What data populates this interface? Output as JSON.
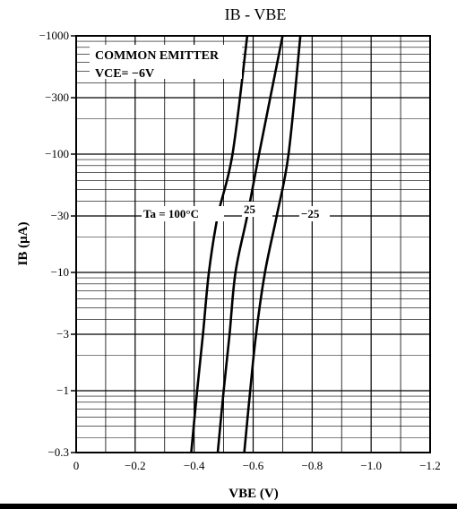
{
  "chart_data": {
    "type": "line",
    "title": "IB - VBE",
    "xlabel": "VBE (V)",
    "ylabel": "IB (μA)",
    "x_scale": "linear",
    "y_scale": "log",
    "xlim": [
      0,
      -1.2
    ],
    "ylim": [
      -0.3,
      -1000
    ],
    "x_ticks": [
      0,
      -0.2,
      -0.4,
      -0.6,
      -0.8,
      -1.0,
      -1.2
    ],
    "x_tick_labels": [
      "0",
      "−0.2",
      "−0.4",
      "−0.6",
      "−0.8",
      "−1.0",
      "−1.2"
    ],
    "y_ticks": [
      -0.3,
      -1,
      -3,
      -10,
      -30,
      -100,
      -300,
      -1000
    ],
    "y_tick_labels": [
      "−0.3",
      "−1",
      "−3",
      "−10",
      "−30",
      "−100",
      "−300",
      "−1000"
    ],
    "grid": true,
    "annotations": [
      "COMMON EMITTER",
      "VCE= −6V"
    ],
    "series": [
      {
        "name": "Ta = 100°C",
        "label": "Ta = 100°C",
        "x": [
          -0.39,
          -0.41,
          -0.43,
          -0.45,
          -0.48,
          -0.53,
          -0.58
        ],
        "y": [
          -0.3,
          -1,
          -3,
          -10,
          -30,
          -100,
          -1000
        ]
      },
      {
        "name": "25",
        "label": "25",
        "x": [
          -0.48,
          -0.5,
          -0.52,
          -0.54,
          -0.58,
          -0.62,
          -0.7
        ],
        "y": [
          -0.3,
          -1,
          -3,
          -10,
          -30,
          -100,
          -1000
        ]
      },
      {
        "name": "−25",
        "label": "−25",
        "x": [
          -0.57,
          -0.59,
          -0.61,
          -0.64,
          -0.68,
          -0.72,
          -0.76
        ],
        "y": [
          -0.3,
          -1,
          -3,
          -10,
          -30,
          -100,
          -1000
        ]
      }
    ]
  }
}
